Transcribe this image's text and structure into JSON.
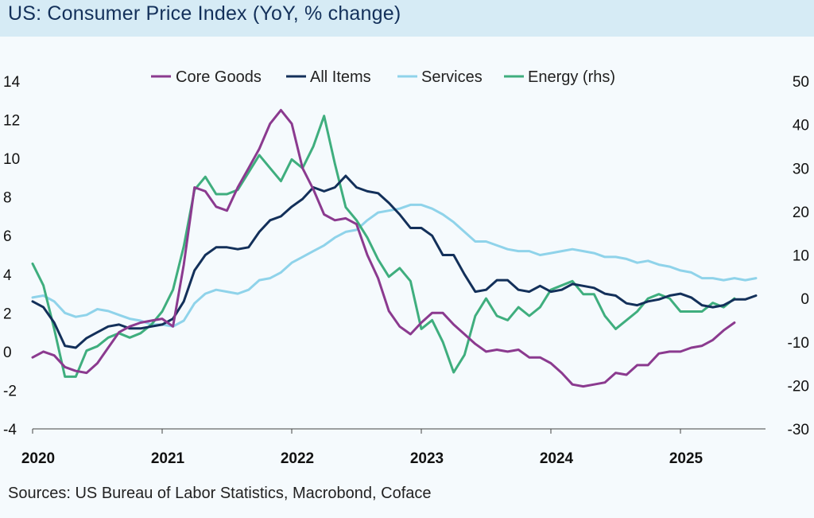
{
  "chart_data": {
    "type": "line",
    "title": "US: Consumer Price Index (YoY, % change)",
    "source": "Sources: US Bureau of Labor Statistics, Macrobond, Coface",
    "x_start": 2020.0,
    "x_step": 0.08333,
    "x_ticks": [
      "2020",
      "2021",
      "2022",
      "2023",
      "2024",
      "2025"
    ],
    "y_left": {
      "min": -4,
      "max": 14,
      "ticks": [
        "-4",
        "-2",
        "0",
        "2",
        "4",
        "6",
        "8",
        "10",
        "12",
        "14"
      ]
    },
    "y_right": {
      "min": -30,
      "max": 50,
      "ticks": [
        "-30",
        "-20",
        "-10",
        "0",
        "10",
        "20",
        "30",
        "40",
        "50"
      ]
    },
    "series": [
      {
        "name": "Core Goods",
        "axis": "left",
        "color": "#8b3a8f",
        "values": [
          -0.3,
          0.0,
          -0.2,
          -0.8,
          -1.0,
          -1.1,
          -0.6,
          0.2,
          1.0,
          1.3,
          1.5,
          1.6,
          1.7,
          1.3,
          4.5,
          8.5,
          8.3,
          7.5,
          7.3,
          8.5,
          9.5,
          10.5,
          11.8,
          12.5,
          11.8,
          9.5,
          8.4,
          7.1,
          6.8,
          6.9,
          6.6,
          5.0,
          3.8,
          2.1,
          1.3,
          0.9,
          1.5,
          2.0,
          2.0,
          1.4,
          0.9,
          0.4,
          0.0,
          0.1,
          0.0,
          0.1,
          -0.3,
          -0.3,
          -0.6,
          -1.1,
          -1.7,
          -1.8,
          -1.7,
          -1.6,
          -1.1,
          -1.2,
          -0.7,
          -0.7,
          -0.1,
          0.0,
          0.0,
          0.2,
          0.3,
          0.6,
          1.1,
          1.5
        ]
      },
      {
        "name": "All Items",
        "axis": "left",
        "color": "#13305a",
        "values": [
          2.6,
          2.3,
          1.5,
          0.3,
          0.2,
          0.7,
          1.0,
          1.3,
          1.4,
          1.2,
          1.2,
          1.3,
          1.4,
          1.7,
          2.6,
          4.2,
          5.0,
          5.4,
          5.4,
          5.3,
          5.4,
          6.2,
          6.8,
          7.0,
          7.5,
          7.9,
          8.5,
          8.3,
          8.5,
          9.1,
          8.5,
          8.3,
          8.2,
          7.7,
          7.1,
          6.4,
          6.4,
          6.0,
          5.0,
          5.0,
          4.0,
          3.1,
          3.2,
          3.7,
          3.7,
          3.2,
          3.1,
          3.4,
          3.1,
          3.2,
          3.5,
          3.4,
          3.3,
          3.0,
          2.9,
          2.5,
          2.4,
          2.6,
          2.7,
          2.9,
          3.0,
          2.8,
          2.4,
          2.3,
          2.4,
          2.7,
          2.7,
          2.9
        ]
      },
      {
        "name": "Services",
        "axis": "left",
        "color": "#8fd3ea",
        "values": [
          2.8,
          2.9,
          2.6,
          2.0,
          1.8,
          1.9,
          2.2,
          2.1,
          1.9,
          1.7,
          1.6,
          1.4,
          1.4,
          1.3,
          1.6,
          2.5,
          3.0,
          3.2,
          3.1,
          3.0,
          3.2,
          3.7,
          3.8,
          4.1,
          4.6,
          4.9,
          5.2,
          5.5,
          5.9,
          6.2,
          6.3,
          6.8,
          7.2,
          7.3,
          7.4,
          7.6,
          7.6,
          7.4,
          7.1,
          6.7,
          6.2,
          5.7,
          5.7,
          5.5,
          5.3,
          5.2,
          5.2,
          5.0,
          5.1,
          5.2,
          5.3,
          5.2,
          5.1,
          4.9,
          4.9,
          4.8,
          4.6,
          4.7,
          4.5,
          4.4,
          4.2,
          4.1,
          3.8,
          3.8,
          3.7,
          3.8,
          3.7,
          3.8
        ]
      },
      {
        "name": "Energy (rhs)",
        "axis": "right",
        "color": "#3fae7e",
        "values": [
          8,
          3,
          -7,
          -18,
          -18,
          -12,
          -11,
          -9,
          -8,
          -9,
          -8,
          -6,
          -3,
          2,
          12,
          25,
          28,
          24,
          24,
          25,
          29,
          33,
          30,
          27,
          32,
          30,
          35,
          42,
          31,
          21,
          18,
          14,
          9,
          5,
          7,
          4,
          -7,
          -5,
          -10,
          -17,
          -13,
          -4,
          0,
          -4,
          -5,
          -2,
          -4,
          -2,
          2,
          3,
          4,
          1,
          1,
          -4,
          -7,
          -5,
          -3,
          0,
          1,
          0,
          -3,
          -3,
          -3,
          -1,
          -2,
          0
        ]
      }
    ]
  }
}
